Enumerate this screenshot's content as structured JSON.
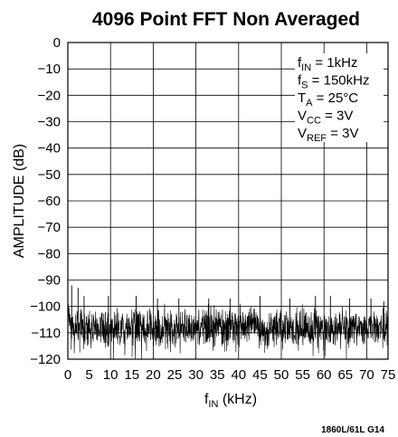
{
  "chart_data": {
    "type": "line",
    "title": "4096 Point FFT Non Averaged",
    "xlabel": {
      "base": "f",
      "sub": "IN",
      "rest": " (kHz)"
    },
    "ylabel": "AMPLITUDE (dB)",
    "xlim": [
      0,
      75
    ],
    "ylim": [
      -120,
      0
    ],
    "xticks": [
      0,
      5,
      10,
      15,
      20,
      25,
      30,
      35,
      40,
      45,
      50,
      55,
      60,
      65,
      70,
      75
    ],
    "yticks": [
      0,
      -10,
      -20,
      -30,
      -40,
      -50,
      -60,
      -70,
      -80,
      -90,
      -100,
      -110,
      -120
    ],
    "grid": true,
    "series": [
      {
        "noise_floor_db": -108,
        "noise_spread_db": [
          -120,
          -99
        ],
        "spurs": [
          {
            "x": 0.9,
            "y": -92
          },
          {
            "x": 2.4,
            "y": -93
          },
          {
            "x": 3.8,
            "y": -96
          },
          {
            "x": 9.5,
            "y": -96
          },
          {
            "x": 16,
            "y": -96
          },
          {
            "x": 21,
            "y": -97
          },
          {
            "x": 26,
            "y": -97
          },
          {
            "x": 33,
            "y": -97
          },
          {
            "x": 38,
            "y": -97
          },
          {
            "x": 45,
            "y": -96
          },
          {
            "x": 52,
            "y": -97
          },
          {
            "x": 58,
            "y": -96
          },
          {
            "x": 61.5,
            "y": -96
          },
          {
            "x": 66,
            "y": -97
          },
          {
            "x": 71,
            "y": -97
          },
          {
            "x": 74,
            "y": -98
          }
        ]
      }
    ],
    "annotations": [
      {
        "base": "f",
        "sub": "IN",
        "rest": " = 1kHz"
      },
      {
        "base": "f",
        "sub": "S",
        "rest": " = 150kHz"
      },
      {
        "base": "T",
        "sub": "A",
        "rest": " = 25°C"
      },
      {
        "base": "V",
        "sub": "CC",
        "rest": " = 3V"
      },
      {
        "base": "V",
        "sub": "REF",
        "rest": " = 3V"
      }
    ],
    "figure_id": "1860L/61L G14"
  }
}
